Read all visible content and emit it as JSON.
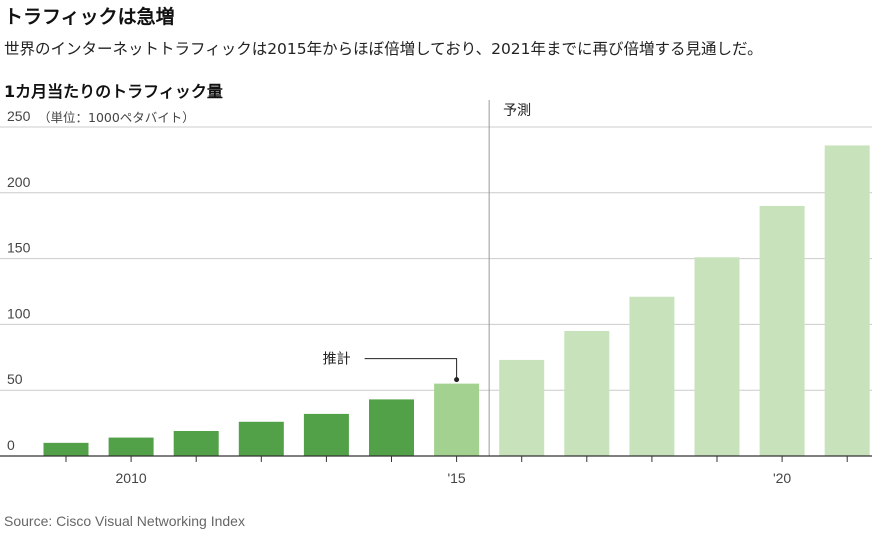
{
  "headline": "トラフィックは急増",
  "dek": "世界のインターネットトラフィックは2015年からほぼ倍増しており、2021年までに再び倍増する見通しだ。",
  "chart_data": {
    "type": "bar",
    "title": "1カ月当たりのトラフィック量",
    "unit_label": "（単位：1000ペタバイト）",
    "categories": [
      "2009",
      "2010",
      "2011",
      "2012",
      "2013",
      "2014",
      "2015",
      "2016",
      "2017",
      "2018",
      "2019",
      "2020",
      "2021"
    ],
    "values": [
      10,
      14,
      19,
      26,
      32,
      43,
      55,
      73,
      95,
      121,
      151,
      190,
      236
    ],
    "status": [
      "actual",
      "actual",
      "actual",
      "actual",
      "actual",
      "actual",
      "estimate",
      "forecast",
      "forecast",
      "forecast",
      "forecast",
      "forecast",
      "forecast"
    ],
    "ylim": [
      0,
      250
    ],
    "yticks": [
      "0",
      "50",
      "100",
      "150",
      "200",
      "250"
    ],
    "xtick_labels": [
      {
        "category": "2010",
        "label": "2010"
      },
      {
        "category": "2015",
        "label": "'15"
      },
      {
        "category": "2020",
        "label": "'20"
      }
    ],
    "annotations": {
      "estimate_label": "推計",
      "forecast_label": "予測"
    },
    "colors": {
      "actual": "#52a047",
      "estimate": "#a3d18f",
      "forecast": "#c8e3bc",
      "grid": "#cccccc",
      "axis": "#333333",
      "divider": "#999999"
    },
    "grid": true
  },
  "source": "Source: Cisco Visual Networking Index"
}
